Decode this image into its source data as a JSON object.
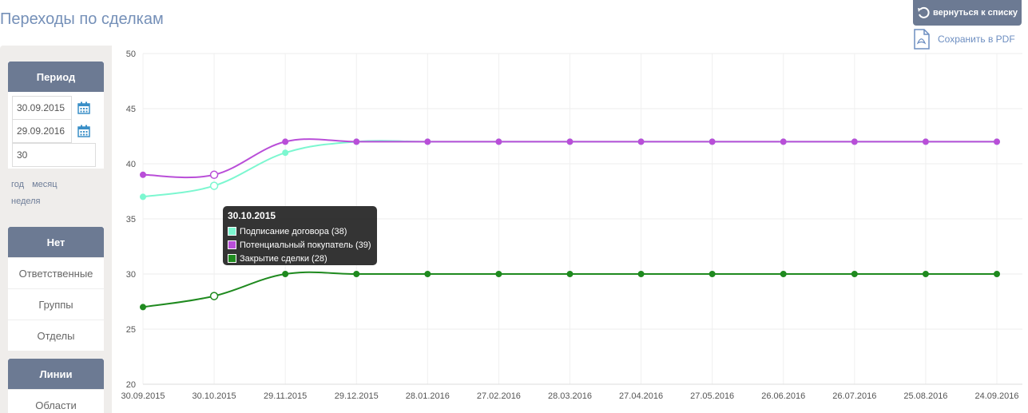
{
  "header": {
    "title": "Переходы по сделкам",
    "back_label": "вернуться к списку",
    "pdf_label": "Сохранить в PDF"
  },
  "sidebar": {
    "period": {
      "title": "Период",
      "date_from": "30.09.2015",
      "date_to": "29.09.2016",
      "step": "30",
      "links": [
        "год",
        "месяц",
        "неделя"
      ]
    },
    "filter": {
      "title": "Нет",
      "items": [
        "Ответственные",
        "Группы",
        "Отделы"
      ]
    },
    "lines": {
      "title": "Линии",
      "items": [
        "Области"
      ]
    }
  },
  "colors": {
    "accent": "#6c7a93",
    "link": "#6d8ec1"
  },
  "chart_data": {
    "type": "line",
    "x": [
      "30.09.2015",
      "30.10.2015",
      "29.11.2015",
      "29.12.2015",
      "28.01.2016",
      "27.02.2016",
      "28.03.2016",
      "27.04.2016",
      "27.05.2016",
      "26.06.2016",
      "26.07.2016",
      "25.08.2016",
      "24.09.2016"
    ],
    "ylim": [
      20,
      50
    ],
    "yticks": [
      20,
      25,
      30,
      35,
      40,
      45,
      50
    ],
    "grid": true,
    "series": [
      {
        "name": "Подписание договора",
        "color": "#7cf7d0",
        "values": [
          37,
          38,
          41,
          42,
          42,
          42,
          42,
          42,
          42,
          42,
          42,
          42,
          42
        ]
      },
      {
        "name": "Потенциальный покупатель",
        "color": "#b94ed8",
        "values": [
          39,
          39,
          42,
          42,
          42,
          42,
          42,
          42,
          42,
          42,
          42,
          42,
          42
        ]
      },
      {
        "name": "Закрытие сделки",
        "color": "#1f8a1f",
        "values": [
          27,
          28,
          30,
          30,
          30,
          30,
          30,
          30,
          30,
          30,
          30,
          30,
          30
        ]
      }
    ],
    "tooltip": {
      "title": "30.10.2015",
      "rows": [
        "Подписание договора (38)",
        "Потенциальный покупатель (39)",
        "Закрытие сделки (28)"
      ]
    }
  }
}
